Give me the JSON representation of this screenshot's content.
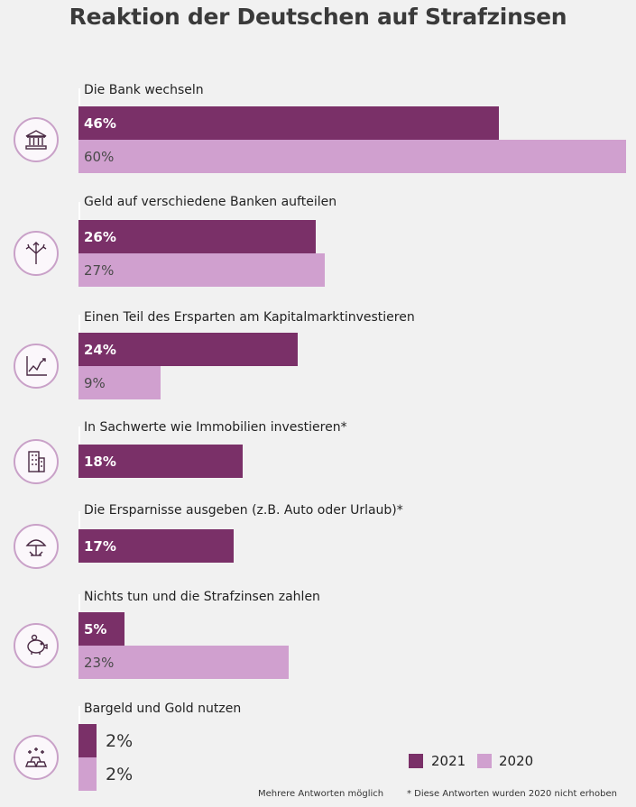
{
  "title": "Reaktion der Deutschen auf Strafzinsen",
  "chart_data": {
    "type": "bar",
    "orientation": "horizontal",
    "title": "Reaktion der Deutschen auf Strafzinsen",
    "unit": "%",
    "categories": [
      "Die Bank wechseln",
      "Geld auf verschiedene Banken aufteilen",
      "Einen Teil des Ersparten am Kapitalmarktinvestieren",
      "In Sachwerte wie Immobilien investieren*",
      "Die Ersparnisse ausgeben (z.B. Auto oder Urlaub)*",
      "Nichts tun und die Strafzinsen zahlen",
      "Bargeld und Gold nutzen"
    ],
    "series": [
      {
        "name": "2021",
        "color": "#7a3068",
        "values": [
          46,
          26,
          24,
          18,
          17,
          5,
          2
        ]
      },
      {
        "name": "2020",
        "color": "#d0a0cf",
        "values": [
          60,
          27,
          9,
          null,
          null,
          23,
          2
        ]
      }
    ],
    "value_labels": {
      "2021": [
        "46%",
        "26%",
        "24%",
        "18%",
        "17%",
        "5%",
        "2%"
      ],
      "2020": [
        "60%",
        "27%",
        "9%",
        null,
        null,
        "23%",
        "2%"
      ]
    },
    "icons": [
      "bank-icon",
      "split-arrows-icon",
      "stock-chart-icon",
      "building-icon",
      "beach-umbrella-icon",
      "piggy-bank-icon",
      "gold-bars-icon"
    ],
    "legend": {
      "placement": "bottom-right",
      "items": [
        {
          "label": "2021",
          "color": "#7a3068"
        },
        {
          "label": "2020",
          "color": "#d0a0cf"
        }
      ]
    },
    "grid": false
  },
  "footnotes": {
    "multiple": "Mehrere Antworten möglich",
    "not_asked": "* Diese Antworten wurden 2020 nicht erhoben"
  }
}
